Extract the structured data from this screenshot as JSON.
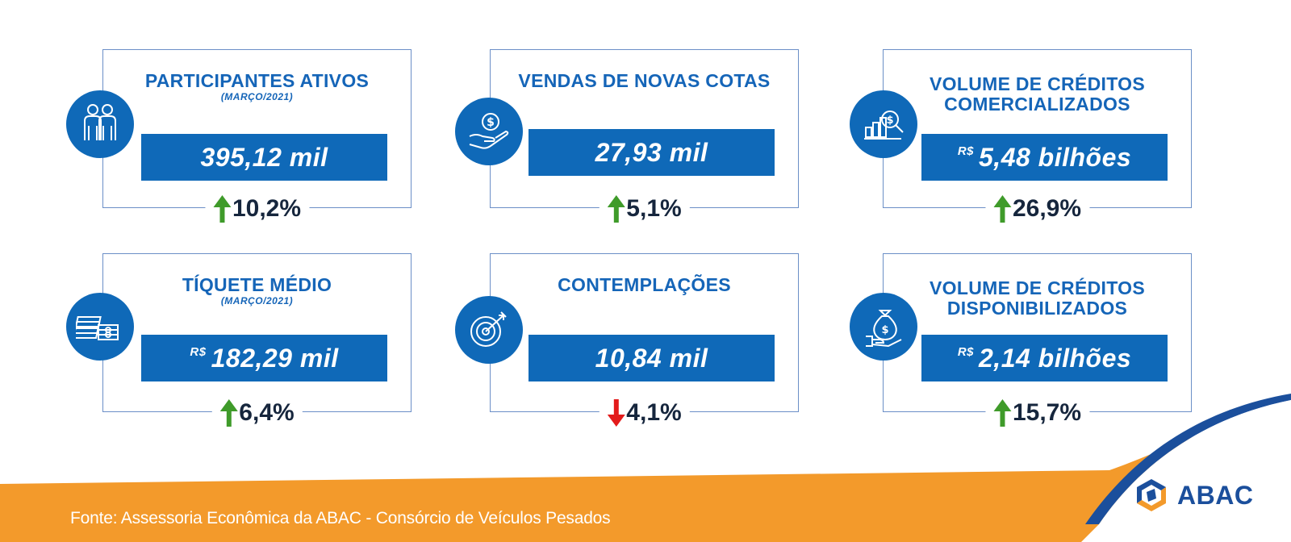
{
  "cards": [
    {
      "title": "PARTICIPANTES ATIVOS",
      "subtitle": "(MARÇO/2021)",
      "value": "395,12 mil",
      "prefix": "",
      "change": "10,2%",
      "direction": "up",
      "icon": "people-icon"
    },
    {
      "title": "VENDAS DE NOVAS COTAS",
      "subtitle": "",
      "value": "27,93 mil",
      "prefix": "",
      "change": "5,1%",
      "direction": "up",
      "icon": "hand-coin-icon"
    },
    {
      "title_line1": "VOLUME DE CRÉDITOS",
      "title_line2": "COMERCIALIZADOS",
      "value": "5,48 bilhões",
      "prefix": "R$",
      "change": "26,9%",
      "direction": "up",
      "icon": "chart-magnifier-icon"
    },
    {
      "title": "TÍQUETE MÉDIO",
      "subtitle": "(MARÇO/2021)",
      "value": "182,29 mil",
      "prefix": "R$",
      "change": "6,4%",
      "direction": "up",
      "icon": "money-stack-icon"
    },
    {
      "title": "CONTEMPLAÇÕES",
      "subtitle": "",
      "value": "10,84 mil",
      "prefix": "",
      "change": "4,1%",
      "direction": "down",
      "icon": "target-icon"
    },
    {
      "title_line1": "VOLUME DE CRÉDITOS",
      "title_line2": "DISPONIBILIZADOS",
      "value": "2,14 bilhões",
      "prefix": "R$",
      "change": "15,7%",
      "direction": "up",
      "icon": "money-bag-hand-icon"
    }
  ],
  "footer": {
    "source": "Fonte: Assessoria Econômica da ABAC - Consórcio de Veículos Pesados"
  },
  "logo": {
    "text": "ABAC"
  },
  "colors": {
    "primary": "#0f69b8",
    "title": "#1565b8",
    "up": "#3f9b2a",
    "down": "#e31b1b",
    "orange": "#f39a2b",
    "dark_text": "#16263d"
  }
}
